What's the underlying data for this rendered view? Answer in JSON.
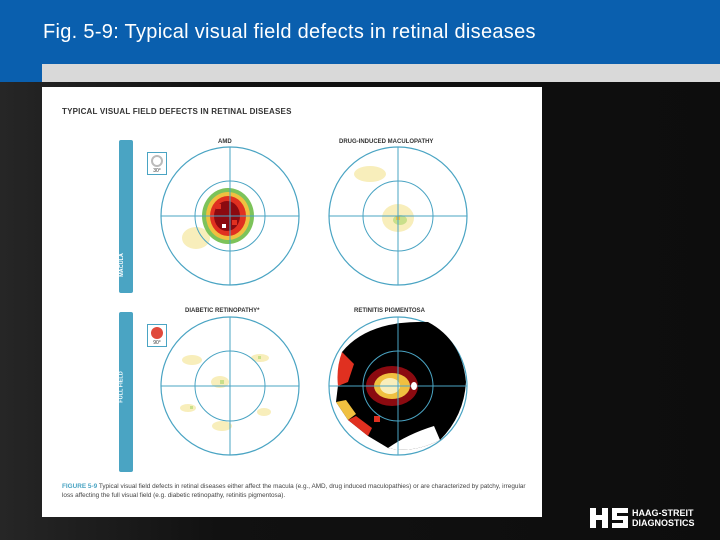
{
  "header": {
    "title": "Fig. 5-9: Typical visual field defects in retinal diseases"
  },
  "figure": {
    "title": "TYPICAL VISUAL FIELD DEFECTS IN RETINAL DISEASES",
    "rows": [
      {
        "label": "MACULA",
        "badge_degree": "30°",
        "badge_color": "#b7b7b7"
      },
      {
        "label": "FULL FIELD",
        "badge_degree": "90°",
        "badge_color": "#e04a3c"
      }
    ],
    "panels": [
      {
        "id": "amd",
        "label": "AMD"
      },
      {
        "id": "drug",
        "label": "DRUG-INDUCED MACULOPATHY"
      },
      {
        "id": "diabetic",
        "label": "DIABETIC RETINOPATHY*"
      },
      {
        "id": "rp",
        "label": "RETINITIS PIGMENTOSA"
      }
    ],
    "caption": {
      "label": "FIGURE 5-9",
      "text": " Typical visual field defects in retinal diseases either affect the macula (e.g., AMD, drug induced maculopathies) or are characterized by patchy, irregular loss affecting the full visual field (e.g. diabetic retinopathy, retinitis pigmentosa)."
    },
    "colors": {
      "accent": "#4aa4c3",
      "defect_dark": "#8b0a10",
      "defect_mid": "#e03020",
      "mild": "#f5e9a8",
      "edge": "#7cc35a"
    }
  },
  "logo": {
    "line1": "HAAG-STREIT",
    "line2": "DIAGNOSTICS"
  }
}
